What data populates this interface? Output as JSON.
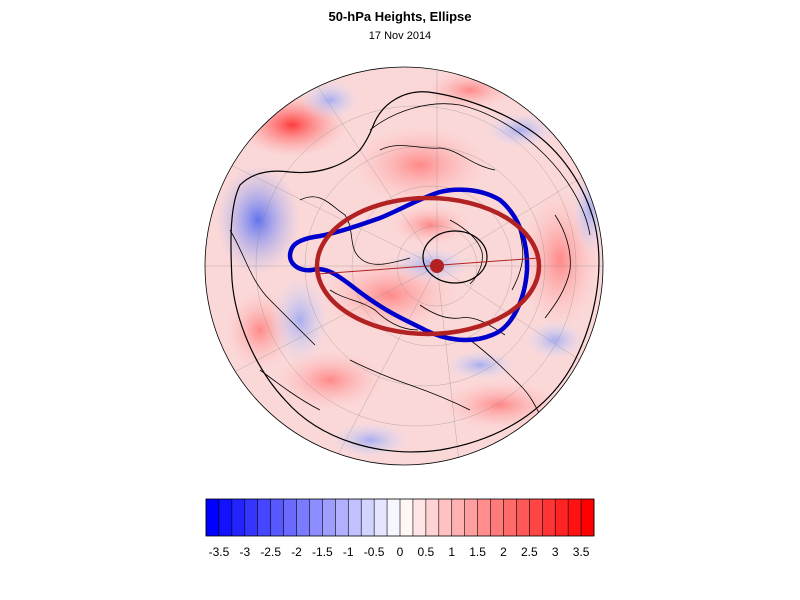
{
  "title": "50-hPa Heights, Ellipse",
  "subtitle": "17 Nov 2014",
  "colorbar": {
    "min": -3.75,
    "max": 3.75,
    "step": 0.25,
    "tick_labels": [
      "-3.5",
      "-3",
      "-2.5",
      "-2",
      "-1.5",
      "-1",
      "-0.5",
      "0",
      "0.5",
      "1",
      "1.5",
      "2",
      "2.5",
      "3",
      "3.5"
    ],
    "negative_color": "#0000ff",
    "positive_color": "#ff0000"
  },
  "map": {
    "projection": "north-polar-stereographic",
    "contour_color_vortex_edge": "#0000cc",
    "ellipse_color": "#b22222",
    "coastline_color": "#000000"
  }
}
